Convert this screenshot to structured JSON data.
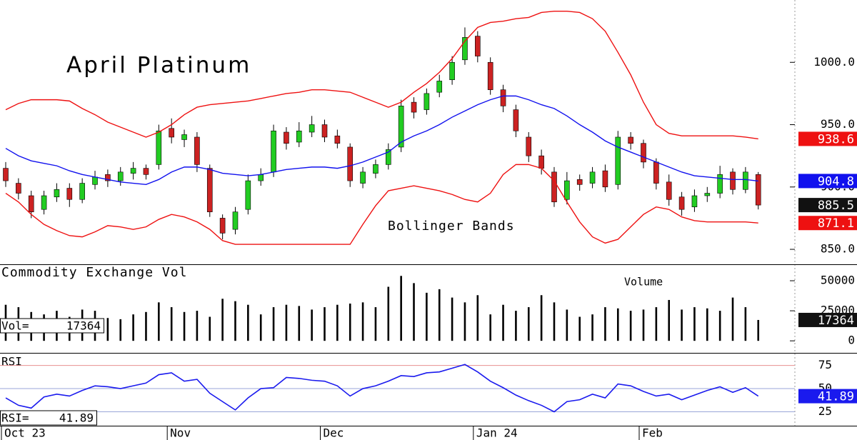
{
  "chart_data": [
    {
      "type": "candlestick",
      "title": "April Platinum",
      "annotation": "Bollinger Bands",
      "categories": [
        "Oct 23",
        null,
        null,
        null,
        null,
        null,
        null,
        null,
        null,
        null,
        null,
        null,
        null,
        "Nov",
        null,
        null,
        null,
        null,
        null,
        null,
        null,
        null,
        null,
        null,
        null,
        "Dec",
        null,
        null,
        null,
        null,
        null,
        null,
        null,
        null,
        null,
        null,
        null,
        "Jan 24",
        null,
        null,
        null,
        null,
        null,
        null,
        null,
        null,
        null,
        null,
        null,
        null,
        "Feb",
        null,
        null,
        null,
        null,
        null,
        null,
        null,
        null,
        null
      ],
      "open": [
        915,
        903,
        893,
        882,
        892,
        899,
        890,
        902,
        910,
        905,
        911,
        915,
        918,
        947,
        938,
        940,
        915,
        875,
        866,
        882,
        905,
        912,
        944,
        936,
        944,
        950,
        941,
        932,
        903,
        911,
        918,
        932,
        968,
        962,
        976,
        986,
        1002,
        1021,
        1000,
        978,
        962,
        940,
        925,
        912,
        890,
        906,
        903,
        913,
        902,
        940,
        935,
        920,
        904,
        892,
        884,
        893,
        895,
        912,
        898,
        910
      ],
      "high": [
        920,
        907,
        897,
        897,
        903,
        903,
        907,
        913,
        914,
        916,
        920,
        918,
        950,
        955,
        946,
        944,
        918,
        878,
        884,
        910,
        915,
        950,
        948,
        952,
        957,
        954,
        946,
        935,
        916,
        922,
        935,
        970,
        972,
        979,
        990,
        1005,
        1028,
        1025,
        1004,
        982,
        966,
        944,
        930,
        916,
        912,
        910,
        916,
        918,
        945,
        944,
        938,
        923,
        910,
        896,
        898,
        900,
        917,
        915,
        916,
        912
      ],
      "low": [
        900,
        890,
        875,
        878,
        888,
        884,
        887,
        898,
        900,
        901,
        906,
        906,
        914,
        935,
        932,
        912,
        876,
        858,
        862,
        878,
        901,
        908,
        930,
        932,
        940,
        936,
        931,
        900,
        899,
        907,
        914,
        928,
        955,
        958,
        972,
        982,
        998,
        1000,
        974,
        960,
        940,
        920,
        910,
        884,
        886,
        897,
        899,
        896,
        898,
        930,
        915,
        898,
        885,
        877,
        880,
        888,
        891,
        894,
        895,
        882
      ],
      "close": [
        905,
        895,
        880,
        893,
        898,
        890,
        903,
        908,
        905,
        912,
        915,
        910,
        945,
        940,
        942,
        918,
        880,
        863,
        880,
        905,
        910,
        945,
        935,
        945,
        950,
        940,
        935,
        905,
        912,
        918,
        930,
        965,
        960,
        975,
        985,
        1000,
        1020,
        1005,
        978,
        965,
        945,
        925,
        915,
        888,
        905,
        902,
        912,
        900,
        940,
        935,
        920,
        903,
        890,
        882,
        893,
        895,
        910,
        898,
        912,
        885.5
      ],
      "up_color": "#22cc22",
      "down_color": "#cc2222",
      "series": [
        {
          "color": "#ee1111",
          "values": [
            962,
            967,
            970,
            970,
            970,
            969,
            963,
            958,
            952,
            948,
            944,
            940,
            944,
            950,
            958,
            964,
            966,
            967,
            968,
            969,
            971,
            973,
            975,
            976,
            978,
            978,
            977,
            976,
            972,
            968,
            964,
            968,
            976,
            983,
            992,
            1003,
            1017,
            1028,
            1032,
            1033,
            1035,
            1036,
            1040,
            1041,
            1041,
            1040,
            1035,
            1025,
            1008,
            990,
            968,
            950,
            943,
            941,
            941,
            941,
            941,
            941,
            940,
            938.6
          ]
        },
        {
          "color": "#1111ee",
          "values": [
            931,
            925,
            921,
            919,
            917,
            913,
            910,
            908,
            906,
            904,
            903,
            902,
            906,
            912,
            916,
            916,
            914,
            911,
            910,
            909,
            910,
            912,
            914,
            915,
            916,
            916,
            915,
            917,
            920,
            924,
            928,
            936,
            941,
            945,
            950,
            956,
            961,
            966,
            970,
            973,
            973,
            970,
            966,
            963,
            957,
            950,
            944,
            937,
            932,
            928,
            924,
            920,
            916,
            912,
            909,
            908,
            907,
            906,
            906,
            904.8
          ]
        },
        {
          "color": "#ee1111",
          "values": [
            895,
            888,
            878,
            870,
            865,
            861,
            860,
            864,
            869,
            868,
            866,
            868,
            874,
            878,
            876,
            872,
            866,
            857,
            854,
            854,
            854,
            854,
            854,
            854,
            854,
            854,
            854,
            854,
            870,
            885,
            897,
            899,
            901,
            899,
            897,
            894,
            890,
            888,
            895,
            910,
            918,
            918,
            915,
            905,
            888,
            872,
            860,
            855,
            858,
            868,
            878,
            884,
            882,
            876,
            873,
            872,
            872,
            872,
            872,
            871.1
          ]
        }
      ],
      "ylim": [
        838,
        1050
      ],
      "yticks": [
        {
          "value": 850,
          "label": "850.0"
        },
        {
          "value": 900,
          "label": "900.0"
        },
        {
          "value": 950,
          "label": "950.0"
        },
        {
          "value": 1000,
          "label": "1000.0"
        }
      ],
      "grid": false
    },
    {
      "type": "bar",
      "title": "Commodity Exchange Vol",
      "annotation": "Volume",
      "readout_label": "Vol=",
      "values": [
        30000,
        28000,
        24000,
        22000,
        25000,
        20000,
        26000,
        25000,
        19000,
        18000,
        22000,
        24000,
        32000,
        28000,
        24000,
        25000,
        20000,
        35000,
        33000,
        30000,
        22000,
        28000,
        30000,
        29000,
        26000,
        28000,
        30000,
        31000,
        32000,
        28000,
        45000,
        54000,
        48000,
        40000,
        43000,
        36000,
        32000,
        38000,
        22000,
        30000,
        25000,
        28000,
        38000,
        32000,
        26000,
        20000,
        22000,
        28000,
        27000,
        25000,
        26000,
        28000,
        34000,
        26000,
        28000,
        27000,
        25000,
        36000,
        28000,
        17364
      ],
      "color": "#000000",
      "tag_color": "#111111",
      "ylim": [
        -10000,
        62500
      ],
      "yticks": [
        0,
        25000,
        50000
      ],
      "grid": false
    },
    {
      "type": "line",
      "title": "RSI",
      "readout_label": "RSI=",
      "values": [
        40,
        32,
        29,
        41,
        44,
        42,
        48,
        53,
        52,
        50,
        53,
        56,
        65,
        67,
        58,
        60,
        45,
        36,
        27,
        40,
        50,
        51,
        62,
        61,
        59,
        58,
        53,
        42,
        50,
        53,
        58,
        64,
        63,
        67,
        68,
        72,
        76,
        68,
        58,
        51,
        43,
        37,
        32,
        25,
        36,
        38,
        44,
        40,
        55,
        53,
        47,
        42,
        44,
        38,
        43,
        48,
        52,
        46,
        51,
        41.89
      ],
      "color": "#1a1aee",
      "ylim": [
        10,
        87
      ],
      "yticks": [
        25,
        50,
        75
      ],
      "grid": true
    }
  ]
}
